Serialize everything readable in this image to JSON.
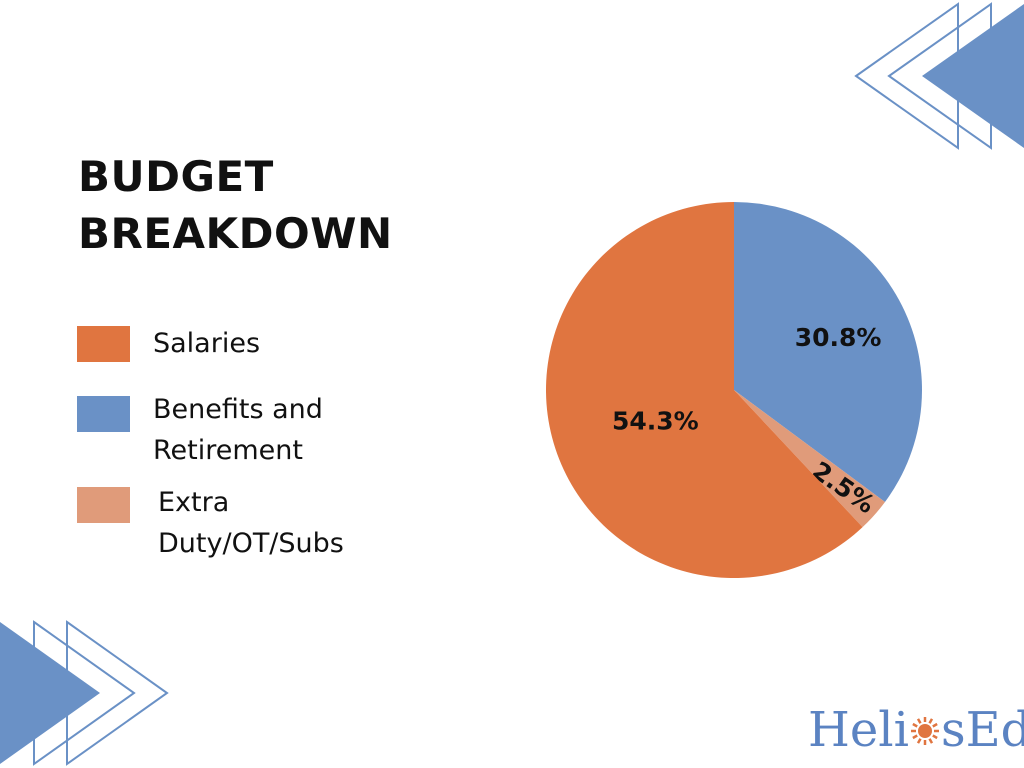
{
  "title_lines": [
    "BUDGET",
    "BREAKDOWN"
  ],
  "legend": [
    {
      "label": "Salaries",
      "color": "#e07540"
    },
    {
      "label": "Benefits and Retirement",
      "color": "#6a91c6"
    },
    {
      "label": "Extra Duty/OT/Subs",
      "color": "#e09b7a"
    }
  ],
  "chart_data": {
    "type": "pie",
    "title": "BUDGET BREAKDOWN",
    "slices": [
      {
        "label": "Benefits and Retirement",
        "value": 30.8,
        "display": "30.8%",
        "color": "#6a91c6"
      },
      {
        "label": "Extra Duty/OT/Subs",
        "value": 2.5,
        "display": "2.5%",
        "color": "#e09b7a"
      },
      {
        "label": "Salaries",
        "value": 54.3,
        "display": "54.3%",
        "color": "#e07540"
      }
    ],
    "legend_position": "left"
  },
  "logo": {
    "text_left": "Heli",
    "text_right": "sEd",
    "primary_color": "#5b83c2",
    "accent_color": "#e07540"
  },
  "colors": {
    "decoration": "#6a91c6",
    "text": "#111111"
  }
}
